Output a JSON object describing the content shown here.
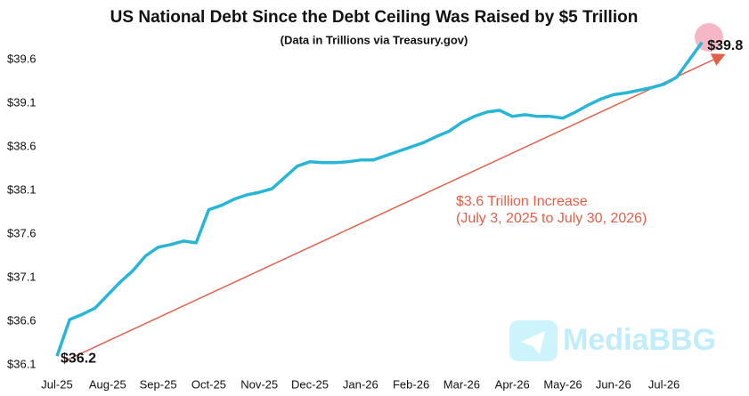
{
  "chart_data": {
    "type": "line",
    "title": "US National Debt Since the Debt Ceiling Was Raised by $5 Trillion",
    "subtitle": "(Data in Trillions via Treasury.gov)",
    "categories": [
      "Jul-25",
      null,
      null,
      null,
      "Aug-25",
      null,
      null,
      null,
      "Sep-25",
      null,
      null,
      null,
      "Oct-25",
      null,
      null,
      null,
      "Nov-25",
      null,
      null,
      null,
      "Dec-25",
      null,
      null,
      null,
      "Jan-26",
      null,
      null,
      null,
      "Feb-26",
      null,
      null,
      null,
      "Mar-26",
      null,
      null,
      null,
      "Apr-26",
      null,
      null,
      null,
      "May-26",
      null,
      null,
      null,
      "Jun-26",
      null,
      null,
      null,
      "Jul-26",
      null,
      null,
      null
    ],
    "values": [
      36.2,
      36.62,
      36.68,
      36.75,
      36.9,
      37.05,
      37.18,
      37.35,
      37.45,
      37.48,
      37.52,
      37.5,
      37.88,
      37.93,
      38.0,
      38.05,
      38.08,
      38.12,
      38.25,
      38.38,
      38.43,
      38.42,
      38.42,
      38.43,
      38.45,
      38.45,
      38.5,
      38.55,
      38.6,
      38.65,
      38.72,
      38.78,
      38.88,
      38.95,
      39.0,
      39.02,
      38.95,
      38.97,
      38.95,
      38.95,
      38.93,
      39.0,
      39.08,
      39.15,
      39.2,
      39.22,
      39.25,
      39.28,
      39.32,
      39.4,
      39.6,
      39.8
    ],
    "color": "#29b6d6",
    "ylim": [
      36.1,
      40.0
    ],
    "yticks": [
      {
        "value": 36.1,
        "label": "$36.1"
      },
      {
        "value": 36.6,
        "label": "$36.6"
      },
      {
        "value": 37.1,
        "label": "$37.1"
      },
      {
        "value": 37.6,
        "label": "$37.6"
      },
      {
        "value": 38.1,
        "label": "$38.1"
      },
      {
        "value": 38.6,
        "label": "$38.6"
      },
      {
        "value": 39.1,
        "label": "$39.1"
      },
      {
        "value": 39.6,
        "label": "$39.6"
      }
    ],
    "grid": false,
    "start_label": "$36.2",
    "end_label": "$39.8",
    "annotation": [
      "$3.6 Trillion Increase",
      "(July 3, 2025 to July 30, 2026)"
    ],
    "annotation_color": "#e0604a",
    "watermark": "MediaBBG"
  }
}
